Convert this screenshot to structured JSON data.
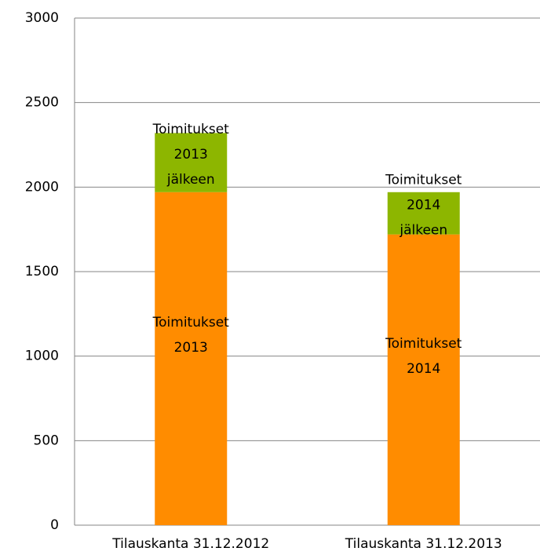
{
  "chart_data": {
    "type": "stacked_bar",
    "categories": [
      "Tilauskanta 31.12.2012",
      "Tilauskanta 31.12.2013"
    ],
    "series": [
      {
        "color": "#ff8c00",
        "values": [
          1970,
          1720
        ],
        "labels": [
          "Toimitukset 2013",
          "Toimitukset 2014"
        ]
      },
      {
        "color": "#8db600",
        "values": [
          350,
          250
        ],
        "labels": [
          "Toimitukset 2013 jälkeen",
          "Toimitukset 2014 jälkeen"
        ]
      }
    ],
    "ylim": [
      0,
      3000
    ],
    "yticks": [
      0,
      500,
      1000,
      1500,
      2000,
      2500,
      3000
    ],
    "grid": true
  }
}
